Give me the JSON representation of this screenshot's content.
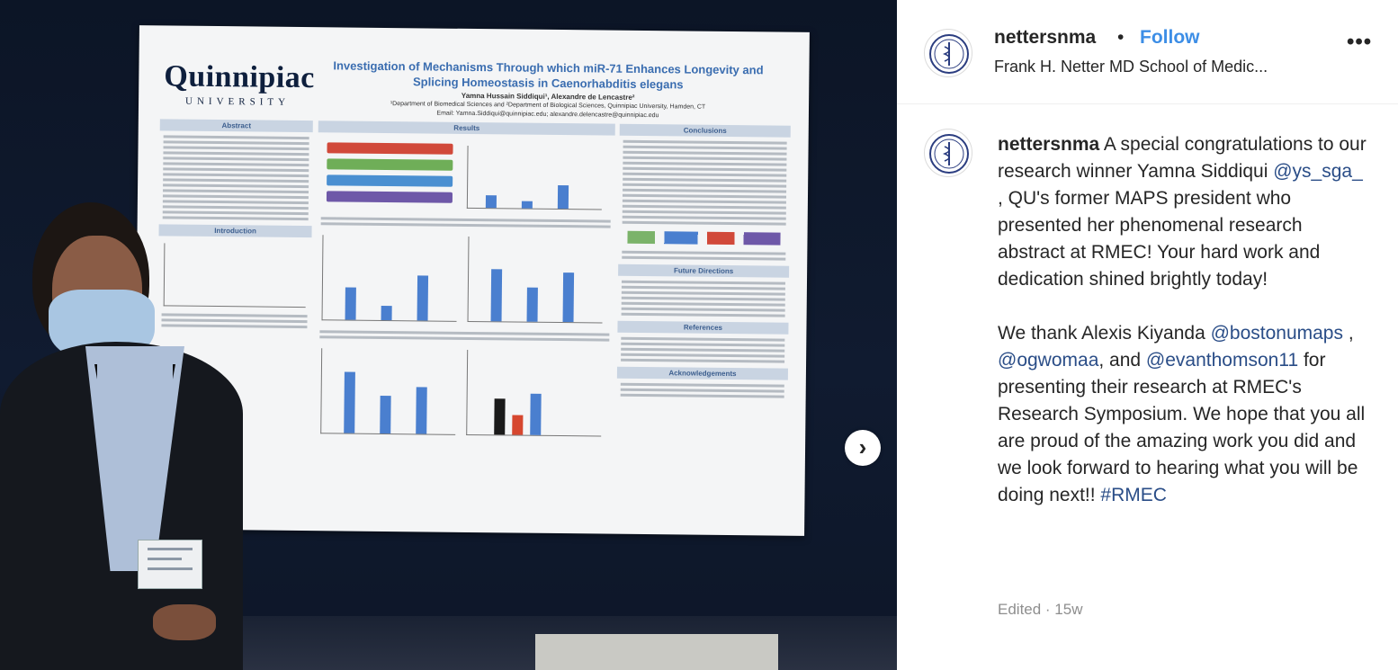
{
  "post": {
    "username": "nettersnma",
    "separator": "•",
    "follow_label": "Follow",
    "account_name": "Frank H. Netter MD School of Medic...",
    "more_label": "•••"
  },
  "poster": {
    "university": "Quinnipiac",
    "university_sub": "UNIVERSITY",
    "title": "Investigation of Mechanisms Through which miR-71 Enhances Longevity and Splicing Homeostasis in Caenorhabditis elegans",
    "authors": "Yamna Hussain Siddiqui¹, Alexandre de Lencastre²",
    "affiliation": "¹Department of Biomedical Sciences and ²Department of Biological Sciences, Quinnipiac University, Hamden, CT",
    "email": "Email: Yamna.Siddiqui@quinnipiac.edu; alexandre.delencastre@quinnipiac.edu",
    "sections": {
      "abstract": "Abstract",
      "introduction": "Introduction",
      "results": "Results",
      "conclusions": "Conclusions",
      "future": "Future Directions",
      "references": "References",
      "acknowledgements": "Acknowledgements"
    }
  },
  "caption": {
    "username": "nettersnma",
    "t1": " A special congratulations to our research winner Yamna Siddiqui ",
    "m1": "@ys_sga_",
    "t2": " , QU's former MAPS president who presented her phenomenal research abstract at RMEC! Your hard work and dedication shined brightly today!",
    "t3": "We thank Alexis Kiyanda ",
    "m2": "@bostonumaps",
    "t4": " , ",
    "m3": "@ogwomaa",
    "t5": ", and ",
    "m4": "@evanthomson11",
    "t6": " for presenting their research at RMEC's Research Symposium. We hope that you all are proud of the amazing work you did and we look forward to hearing what you will be doing next!! ",
    "m5": "#RMEC"
  },
  "meta": {
    "edited": "Edited · 15w"
  },
  "nav": {
    "next_icon": "›"
  }
}
